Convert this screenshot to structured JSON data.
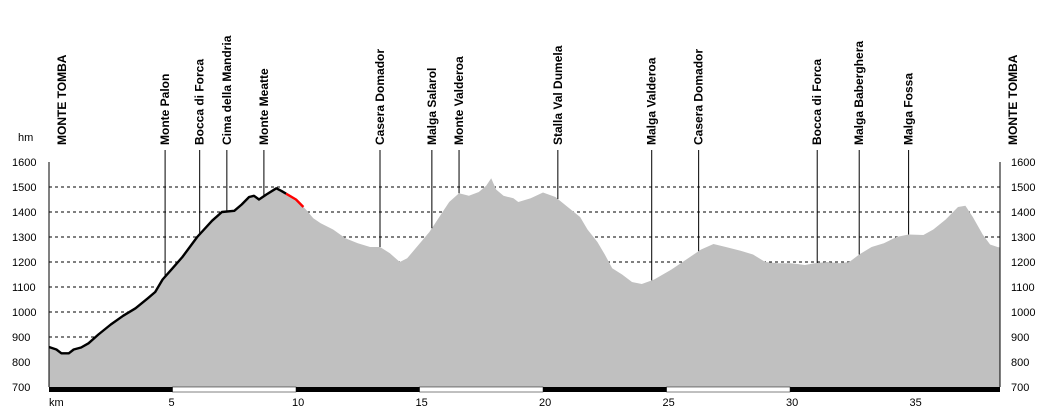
{
  "chart_data": {
    "type": "area",
    "ylabel": "hm",
    "xlabel": "km",
    "xlim": [
      0,
      38.5
    ],
    "ylim": [
      700,
      1600
    ],
    "yticks": [
      "700",
      "800",
      "900",
      "1000",
      "1100",
      "1200",
      "1300",
      "1400",
      "1500",
      "1600"
    ],
    "xticks": [
      "5",
      "10",
      "15",
      "20",
      "25",
      "30",
      "35"
    ],
    "grid": true,
    "fill_color": "#c0c0c0",
    "segment_colors": {
      "black": "#000000",
      "green": "#0a7a0a",
      "yellow": "#ffff00",
      "red": "#ff0000",
      "purple": "#8000c0"
    },
    "profile": [
      [
        0.0,
        860
      ],
      [
        0.3,
        850
      ],
      [
        0.5,
        835
      ],
      [
        0.8,
        835
      ],
      [
        1.0,
        850
      ],
      [
        1.3,
        858
      ],
      [
        1.6,
        875
      ],
      [
        2.0,
        910
      ],
      [
        2.5,
        950
      ],
      [
        3.0,
        985
      ],
      [
        3.5,
        1015
      ],
      [
        4.0,
        1055
      ],
      [
        4.3,
        1080
      ],
      [
        4.6,
        1130
      ],
      [
        5.0,
        1175
      ],
      [
        5.4,
        1220
      ],
      [
        6.0,
        1300
      ],
      [
        6.6,
        1365
      ],
      [
        7.0,
        1400
      ],
      [
        7.5,
        1405
      ],
      [
        7.8,
        1430
      ],
      [
        8.1,
        1460
      ],
      [
        8.3,
        1465
      ],
      [
        8.5,
        1450
      ],
      [
        8.8,
        1470
      ],
      [
        9.2,
        1495
      ],
      [
        9.4,
        1485
      ],
      [
        10.0,
        1450
      ],
      [
        10.4,
        1410
      ],
      [
        10.7,
        1375
      ],
      [
        11.0,
        1355
      ],
      [
        11.5,
        1330
      ],
      [
        12.0,
        1295
      ],
      [
        12.5,
        1275
      ],
      [
        13.0,
        1260
      ],
      [
        13.4,
        1260
      ],
      [
        13.8,
        1235
      ],
      [
        14.2,
        1200
      ],
      [
        14.5,
        1215
      ],
      [
        14.8,
        1250
      ],
      [
        15.4,
        1320
      ],
      [
        15.8,
        1380
      ],
      [
        16.2,
        1440
      ],
      [
        16.6,
        1475
      ],
      [
        17.0,
        1465
      ],
      [
        17.4,
        1480
      ],
      [
        17.7,
        1505
      ],
      [
        17.9,
        1535
      ],
      [
        18.1,
        1490
      ],
      [
        18.4,
        1465
      ],
      [
        18.8,
        1455
      ],
      [
        19.0,
        1440
      ],
      [
        19.5,
        1455
      ],
      [
        20.0,
        1478
      ],
      [
        20.5,
        1460
      ],
      [
        21.0,
        1420
      ],
      [
        21.5,
        1380
      ],
      [
        21.8,
        1330
      ],
      [
        22.2,
        1280
      ],
      [
        22.5,
        1230
      ],
      [
        22.8,
        1175
      ],
      [
        23.2,
        1150
      ],
      [
        23.6,
        1120
      ],
      [
        24.0,
        1112
      ],
      [
        24.5,
        1130
      ],
      [
        25.2,
        1170
      ],
      [
        25.8,
        1210
      ],
      [
        26.4,
        1250
      ],
      [
        26.9,
        1272
      ],
      [
        27.4,
        1260
      ],
      [
        28.0,
        1245
      ],
      [
        28.5,
        1230
      ],
      [
        29.0,
        1200
      ],
      [
        29.5,
        1195
      ],
      [
        30.0,
        1195
      ],
      [
        30.3,
        1192
      ],
      [
        30.6,
        1188
      ],
      [
        31.0,
        1195
      ],
      [
        31.5,
        1200
      ],
      [
        32.0,
        1195
      ],
      [
        32.4,
        1200
      ],
      [
        32.8,
        1230
      ],
      [
        33.3,
        1260
      ],
      [
        33.8,
        1275
      ],
      [
        34.3,
        1300
      ],
      [
        34.8,
        1310
      ],
      [
        35.4,
        1308
      ],
      [
        35.8,
        1330
      ],
      [
        36.3,
        1370
      ],
      [
        36.8,
        1420
      ],
      [
        37.1,
        1425
      ],
      [
        37.4,
        1380
      ],
      [
        37.8,
        1310
      ],
      [
        38.1,
        1270
      ],
      [
        38.4,
        1260
      ],
      [
        38.5,
        1258
      ]
    ],
    "segments": [
      {
        "from": 0.0,
        "to": 9.6,
        "color": "black"
      },
      {
        "from": 9.6,
        "to": 10.3,
        "color": "red"
      }
    ],
    "markers": [
      {
        "name": "MONTE TOMBA",
        "x": 0.0
      },
      {
        "name": "Monte Palon",
        "x": 4.7
      },
      {
        "name": "Bocca di Forca",
        "x": 6.1
      },
      {
        "name": "Cima della Mandria",
        "x": 7.2
      },
      {
        "name": "Monte Meatte",
        "x": 8.7
      },
      {
        "name": "Casera Domador",
        "x": 13.4
      },
      {
        "name": "Malga Salarol",
        "x": 15.5
      },
      {
        "name": "Monte Valderoa",
        "x": 16.6
      },
      {
        "name": "Stalla Val Dumela",
        "x": 20.6
      },
      {
        "name": "Malga Valderoa",
        "x": 24.4
      },
      {
        "name": "Casera Domador",
        "x": 26.3
      },
      {
        "name": "Bocca di Forca",
        "x": 31.1
      },
      {
        "name": "Malga Baberghera",
        "x": 32.8
      },
      {
        "name": "Malga Fossa",
        "x": 34.8
      },
      {
        "name": "MONTE TOMBA",
        "x": 38.5
      }
    ]
  }
}
